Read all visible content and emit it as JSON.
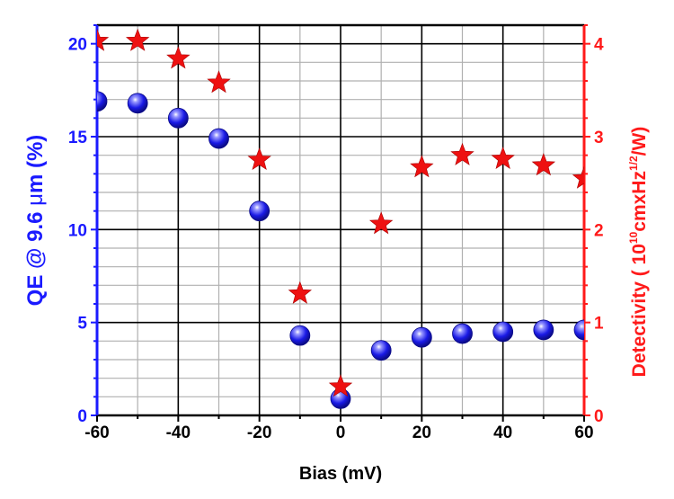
{
  "chart_data": {
    "type": "scatter",
    "title": "",
    "xlabel": "Bias (mV)",
    "ylabel_left": {
      "prefix": "QE @ 9.6 ",
      "unit_mu": "μ",
      "suffix": "m (%)"
    },
    "ylabel_right": {
      "prefix": "Detectivity ( 10",
      "exp1": "10",
      "mid": "cmxHz",
      "exp2": "1/2",
      "suffix": "/W)"
    },
    "xlim": [
      -60,
      60
    ],
    "ylim_left": [
      0,
      21
    ],
    "ylim_right": [
      0,
      4.2
    ],
    "x_ticks": [
      -60,
      -40,
      -20,
      0,
      20,
      40,
      60
    ],
    "x_tick_labels": [
      "-60",
      "-40",
      "-20",
      "0",
      "20",
      "40",
      "60"
    ],
    "y_left_ticks": [
      0,
      5,
      10,
      15,
      20
    ],
    "y_left_tick_labels": [
      "0",
      "5",
      "10",
      "15",
      "20"
    ],
    "y_right_ticks": [
      0,
      1,
      2,
      3,
      4
    ],
    "y_right_tick_labels": [
      "0",
      "1",
      "2",
      "3",
      "4"
    ],
    "grid": true,
    "colors": {
      "left_axis": "#1a1aff",
      "right_axis": "#ff1a1a",
      "grid": "#000000",
      "minor_grid": "#b0b0b0"
    },
    "series": [
      {
        "axis": "left",
        "marker": "sphere",
        "color": "#1010e0",
        "x": [
          -60,
          -50,
          -40,
          -30,
          -20,
          -10,
          0,
          10,
          20,
          30,
          40,
          50,
          60
        ],
        "y": [
          16.9,
          16.8,
          16.0,
          14.9,
          11.0,
          4.3,
          0.9,
          3.5,
          4.2,
          4.4,
          4.5,
          4.6,
          4.6
        ]
      },
      {
        "axis": "right",
        "marker": "star",
        "color": "#ee1111",
        "x": [
          -60,
          -50,
          -40,
          -30,
          -20,
          -10,
          0,
          10,
          20,
          30,
          40,
          50,
          60
        ],
        "y": [
          4.03,
          4.03,
          3.84,
          3.58,
          2.75,
          1.31,
          0.31,
          2.06,
          2.67,
          2.8,
          2.76,
          2.69,
          2.55
        ]
      }
    ]
  }
}
